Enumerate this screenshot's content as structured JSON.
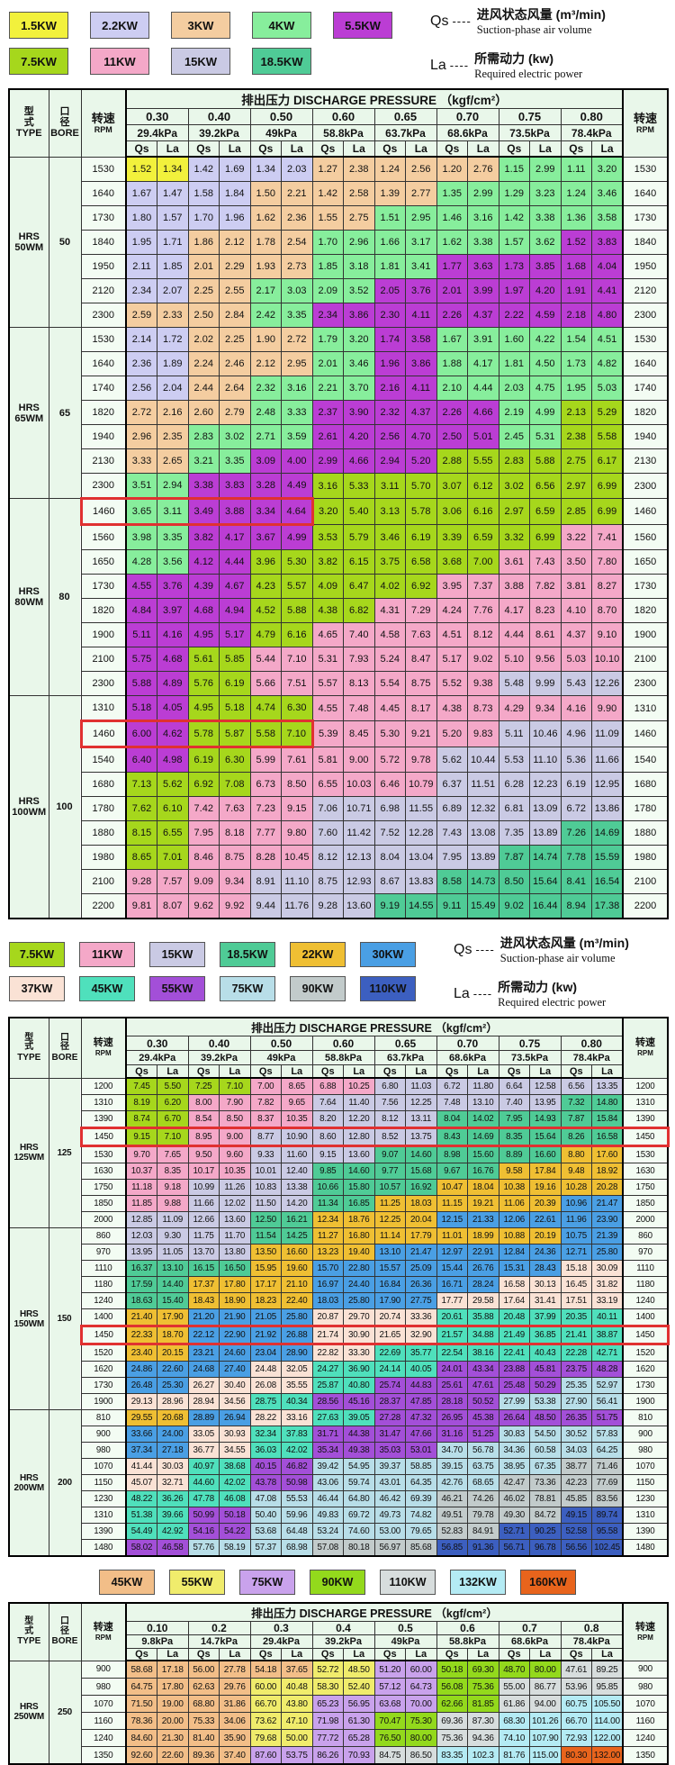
{
  "palette": {
    "a": "#F2F13C",
    "b": "#CDCDF2",
    "c": "#F4CDA0",
    "d": "#87EE9C",
    "e": "#BB3DD4",
    "f": "#A6D71C",
    "g": "#F4A8C8",
    "h": "#CACAE4",
    "i": "#4FCB96",
    "j": "#EFBF33",
    "k": "#4A9FE4",
    "l": "#FAE2D5",
    "m": "#4FE0BC",
    "n": "#A34FD8",
    "o": "#B8DEE8",
    "p": "#C2CBCB",
    "q": "#3C5FC0",
    "r": "#F2BE88",
    "s": "#F0EC6C",
    "t": "#C9A2EC",
    "u": "#93D91C",
    "v": "#D7DDDD",
    "w": "#B4EBF4",
    "x": "#E8641C"
  },
  "defs": {
    "qs": {
      "sym": "Qs",
      "dash": "----",
      "cn": "进风状态风量 (m³/min)",
      "en": "Suction-phase air volume"
    },
    "la": {
      "sym": "La",
      "dash": "----",
      "cn": "所需动力 (kw)",
      "en": "Required electric power"
    }
  },
  "header": {
    "type_cn": [
      "型",
      "式"
    ],
    "type_en": "TYPE",
    "bore_cn": [
      "口",
      "径"
    ],
    "bore_en": "BORE",
    "rpm_cn": "转速",
    "rpm_en": "RPM",
    "pressure_title": "排出压力 DISCHARGE PRESSURE （kgf/cm²）",
    "qs": "Qs",
    "la": "La"
  },
  "legends": [
    {
      "small": false,
      "center": false,
      "notes": [
        "qs",
        "la"
      ],
      "rows": [
        [
          {
            "label": "1.5KW",
            "color": "a"
          },
          {
            "label": "2.2KW",
            "color": "b"
          },
          {
            "label": "3KW",
            "color": "c"
          },
          {
            "label": "4KW",
            "color": "d"
          },
          {
            "label": "5.5KW",
            "color": "e"
          }
        ],
        [
          {
            "label": "7.5KW",
            "color": "f"
          },
          {
            "label": "11KW",
            "color": "g"
          },
          {
            "label": "15KW",
            "color": "h"
          },
          {
            "label": "18.5KW",
            "color": "i"
          }
        ]
      ]
    },
    {
      "small": true,
      "center": false,
      "notes": [
        "qs",
        "la"
      ],
      "rows": [
        [
          {
            "label": "7.5KW",
            "color": "f"
          },
          {
            "label": "11KW",
            "color": "g"
          },
          {
            "label": "15KW",
            "color": "h"
          },
          {
            "label": "18.5KW",
            "color": "i"
          },
          {
            "label": "22KW",
            "color": "j"
          },
          {
            "label": "30KW",
            "color": "k"
          }
        ],
        [
          {
            "label": "37KW",
            "color": "l"
          },
          {
            "label": "45KW",
            "color": "m"
          },
          {
            "label": "55KW",
            "color": "n"
          },
          {
            "label": "75KW",
            "color": "o"
          },
          {
            "label": "90KW",
            "color": "p"
          },
          {
            "label": "110KW",
            "color": "q"
          }
        ]
      ]
    },
    {
      "small": true,
      "center": true,
      "notes": [],
      "rows": [
        [
          {
            "label": "45KW",
            "color": "r"
          },
          {
            "label": "55KW",
            "color": "s"
          },
          {
            "label": "75KW",
            "color": "t"
          },
          {
            "label": "90KW",
            "color": "u"
          },
          {
            "label": "110KW",
            "color": "v"
          },
          {
            "label": "132KW",
            "color": "w"
          },
          {
            "label": "160KW",
            "color": "x"
          }
        ]
      ]
    }
  ],
  "tables": [
    {
      "cls": "t1",
      "pressures": [
        [
          "0.30",
          "29.4kPa"
        ],
        [
          "0.40",
          "39.2kPa"
        ],
        [
          "0.50",
          "49kPa"
        ],
        [
          "0.60",
          "58.8kPa"
        ],
        [
          "0.65",
          "63.7kPa"
        ],
        [
          "0.70",
          "68.6kPa"
        ],
        [
          "0.75",
          "73.5kPa"
        ],
        [
          "0.80",
          "78.4kPa"
        ]
      ],
      "groups": [
        {
          "type": [
            "HRS",
            "50WM"
          ],
          "bore": "50",
          "rows": [
            {
              "r": "1530",
              "v": "1.52 1.34 1.42 1.69 1.34 2.03 1.27 2.38 1.24 2.56 1.20 2.76 1.15 2.99 1.11 3.20",
              "c": "abbcccdd"
            },
            {
              "r": "1640",
              "v": "1.67 1.47 1.58 1.84 1.50 2.21 1.42 2.58 1.39 2.77 1.35 2.99 1.29 3.23 1.24 3.46",
              "c": "bbcccddd"
            },
            {
              "r": "1730",
              "v": "1.80 1.57 1.70 1.96 1.62 2.36 1.55 2.75 1.51 2.95 1.46 3.16 1.42 3.38 1.36 3.58",
              "c": "bbccdddd"
            },
            {
              "r": "1840",
              "v": "1.95 1.71 1.86 2.12 1.78 2.54 1.70 2.96 1.66 3.17 1.62 3.38 1.57 3.62 1.52 3.83",
              "c": "bccdddde"
            },
            {
              "r": "1950",
              "v": "2.11 1.85 2.01 2.29 1.93 2.73 1.85 3.18 1.81 3.41 1.77 3.63 1.73 3.85 1.68 4.04",
              "c": "bccddeee"
            },
            {
              "r": "2120",
              "v": "2.34 2.07 2.25 2.55 2.17 3.03 2.09 3.52 2.05 3.76 2.01 3.99 1.97 4.20 1.91 4.41",
              "c": "bcddeeee"
            },
            {
              "r": "2300",
              "v": "2.59 2.33 2.50 2.84 2.42 3.35 2.34 3.86 2.30 4.11 2.26 4.37 2.22 4.59 2.18 4.80",
              "c": "ccdeeeee"
            }
          ]
        },
        {
          "type": [
            "HRS",
            "65WM"
          ],
          "bore": "65",
          "rows": [
            {
              "r": "1530",
              "v": "2.14 1.72 2.02 2.25 1.90 2.72 1.79 3.20 1.74 3.58 1.67 3.91 1.60 4.22 1.54 4.51",
              "c": "bccdeddd"
            },
            {
              "r": "1640",
              "v": "2.36 1.89 2.24 2.46 2.12 2.95 2.01 3.46 1.96 3.86 1.88 4.17 1.81 4.50 1.73 4.82",
              "c": "bccdeddd"
            },
            {
              "r": "1740",
              "v": "2.56 2.04 2.44 2.64 2.32 3.16 2.21 3.70 2.16 4.11 2.10 4.44 2.03 4.75 1.95 5.03",
              "c": "bcddeddd"
            },
            {
              "r": "1820",
              "v": "2.72 2.16 2.60 2.79 2.48 3.33 2.37 3.90 2.32 4.37 2.26 4.66 2.19 4.99 2.13 5.29",
              "c": "ccdeeedf"
            },
            {
              "r": "1940",
              "v": "2.96 2.35 2.83 3.02 2.71 3.59 2.61 4.20 2.56 4.70 2.50 5.01 2.45 5.31 2.38 5.58",
              "c": "cddeeedf"
            },
            {
              "r": "2130",
              "v": "3.33 2.65 3.21 3.35 3.09 4.00 2.99 4.66 2.94 5.20 2.88 5.55 2.83 5.88 2.75 6.17",
              "c": "cdeeefff"
            },
            {
              "r": "2300",
              "v": "3.51 2.94 3.38 3.83 3.28 4.49 3.16 5.33 3.11 5.70 3.07 6.12 3.02 6.56 2.97 6.99",
              "c": "deefffff"
            }
          ]
        },
        {
          "type": [
            "HRS",
            "80WM"
          ],
          "bore": "80",
          "rows": [
            {
              "r": "1460",
              "v": "3.65 3.11 3.49 3.88 3.34 4.64 3.20 5.40 3.13 5.78 3.06 6.16 2.97 6.59 2.85 6.99",
              "c": "deefffff",
              "h": 3
            },
            {
              "r": "1560",
              "v": "3.98 3.35 3.82 4.17 3.67 4.99 3.53 5.79 3.46 6.19 3.39 6.59 3.32 6.99 3.22 7.41",
              "c": "deeffffg"
            },
            {
              "r": "1650",
              "v": "4.28 3.56 4.12 4.44 3.96 5.30 3.82 6.15 3.75 6.58 3.68 7.00 3.61 7.43 3.50 7.80",
              "c": "deffffgg"
            },
            {
              "r": "1730",
              "v": "4.55 3.76 4.39 4.67 4.23 5.57 4.09 6.47 4.02 6.92 3.95 7.37 3.88 7.82 3.81 8.27",
              "c": "eefffggg"
            },
            {
              "r": "1820",
              "v": "4.84 3.97 4.68 4.94 4.52 5.88 4.38 6.82 4.31 7.29 4.24 7.76 4.17 8.23 4.10 8.70",
              "c": "eeffgggg"
            },
            {
              "r": "1900",
              "v": "5.11 4.16 4.95 5.17 4.79 6.16 4.65 7.40 4.58 7.63 4.51 8.12 4.44 8.61 4.37 9.10",
              "c": "eefggggg"
            },
            {
              "r": "2100",
              "v": "5.75 4.68 5.61 5.85 5.44 7.10 5.31 7.93 5.24 8.47 5.17 9.02 5.10 9.56 5.03 10.10",
              "c": "efgggggg"
            },
            {
              "r": "2300",
              "v": "5.88 4.89 5.76 6.19 5.66 7.51 5.57 8.13 5.54 8.75 5.52 9.38 5.48 9.99 5.43 12.26",
              "c": "efgggghh"
            }
          ]
        },
        {
          "type": [
            "HRS",
            "100WM"
          ],
          "bore": "100",
          "rows": [
            {
              "r": "1310",
              "v": "5.18 4.05 4.95 5.18 4.74 6.30 4.55 7.48 4.45 8.17 4.38 8.73 4.29 9.34 4.16 9.90",
              "c": "effggggg"
            },
            {
              "r": "1460",
              "v": "6.00 4.62 5.78 5.87 5.58 7.10 5.39 8.45 5.30 9.21 5.20 9.83 5.11 10.46 4.96 11.09",
              "c": "effggghh",
              "h": 3
            },
            {
              "r": "1540",
              "v": "6.40 4.98 6.19 6.30 5.99 7.61 5.81 9.00 5.72 9.78 5.62 10.44 5.53 11.10 5.36 11.66",
              "c": "efggghhh"
            },
            {
              "r": "1680",
              "v": "7.13 5.62 6.92 7.08 6.73 8.50 6.55 10.03 6.46 10.79 6.37 11.51 6.28 12.23 6.19 12.95",
              "c": "ffggghhh"
            },
            {
              "r": "1780",
              "v": "7.62 6.10 7.42 7.63 7.23 9.15 7.06 10.71 6.98 11.55 6.89 12.32 6.81 13.09 6.72 13.86",
              "c": "fgghhhhh"
            },
            {
              "r": "1880",
              "v": "8.15 6.55 7.95 8.18 7.77 9.80 7.60 11.42 7.52 12.28 7.43 13.08 7.35 13.89 7.26 14.69",
              "c": "fgghhhhi"
            },
            {
              "r": "1980",
              "v": "8.65 7.01 8.46 8.75 8.28 10.45 8.12 12.13 8.04 13.04 7.95 13.89 7.87 14.74 7.78 15.59",
              "c": "fgghhhii"
            },
            {
              "r": "2100",
              "v": "9.28 7.57 9.09 9.34 8.91 11.10 8.75 12.93 8.67 13.83 8.58 14.73 8.50 15.64 8.41 16.54",
              "c": "gghhhiii"
            },
            {
              "r": "2200",
              "v": "9.81 8.07 9.62 9.92 9.44 11.76 9.28 13.60 9.19 14.55 9.11 15.49 9.02 16.44 8.94 17.38",
              "c": "gghhiiii"
            }
          ]
        }
      ]
    },
    {
      "cls": "t2",
      "pressures": [
        [
          "0.30",
          "29.4kPa"
        ],
        [
          "0.40",
          "39.2kPa"
        ],
        [
          "0.50",
          "49kPa"
        ],
        [
          "0.60",
          "58.8kPa"
        ],
        [
          "0.65",
          "63.7kPa"
        ],
        [
          "0.70",
          "68.6kPa"
        ],
        [
          "0.75",
          "73.5kPa"
        ],
        [
          "0.80",
          "78.4kPa"
        ]
      ],
      "groups": [
        {
          "type": [
            "HRS",
            "125WM"
          ],
          "bore": "125",
          "rows": [
            {
              "r": "1200",
              "v": "7.45 5.50 7.25 7.10 7.00 8.65 6.88 10.25 6.80 11.03 6.72 11.80 6.64 12.58 6.56 13.35",
              "c": "ffgghhhh"
            },
            {
              "r": "1310",
              "v": "8.19 6.20 8.00 7.90 7.82 9.65 7.64 11.40 7.56 12.25 7.48 13.10 7.40 13.95 7.32 14.80",
              "c": "fgghhhhi"
            },
            {
              "r": "1390",
              "v": "8.74 6.70 8.54 8.50 8.37 10.35 8.20 12.20 8.12 13.11 8.04 14.02 7.95 14.93 7.87 15.84",
              "c": "fgghhiii"
            },
            {
              "r": "1450",
              "v": "9.15 7.10 8.95 9.00 8.77 10.90 8.60 12.80 8.52 13.75 8.43 14.69 8.35 15.64 8.26 16.58",
              "c": "fghhhiii",
              "h": "f"
            },
            {
              "r": "1530",
              "v": "9.70 7.65 9.50 9.60 9.33 11.60 9.15 13.60 9.07 14.60 8.98 15.60 8.89 16.60 8.80 17.60",
              "c": "gghhiiij"
            },
            {
              "r": "1630",
              "v": "10.37 8.35 10.17 10.35 10.01 12.40 9.85 14.60 9.77 15.68 9.67 16.76 9.58 17.84 9.48 18.92",
              "c": "gghiiijj"
            },
            {
              "r": "1750",
              "v": "11.18 9.18 10.99 11.26 10.83 13.38 10.66 15.80 10.57 16.92 10.47 18.04 10.38 19.16 10.28 20.28",
              "c": "ghhiijjj"
            },
            {
              "r": "1850",
              "v": "11.85 9.88 11.66 12.02 11.50 14.20 11.34 16.85 11.25 18.03 11.15 19.21 11.06 20.39 10.96 21.47",
              "c": "ghhijjjk"
            },
            {
              "r": "2000",
              "v": "12.85 11.09 12.66 13.60 12.50 16.21 12.34 18.76 12.25 20.04 12.15 21.33 12.06 22.61 11.96 23.90",
              "c": "hhijjkkk"
            }
          ]
        },
        {
          "type": [
            "HRS",
            "150WM"
          ],
          "bore": "150",
          "rows": [
            {
              "r": "860",
              "v": "12.03 9.30 11.75 11.70 11.54 14.25 11.27 16.80 11.14 17.79 11.01 18.99 10.88 20.19 10.75 21.39",
              "c": "hhijjjjk"
            },
            {
              "r": "970",
              "v": "13.95 11.05 13.70 13.80 13.50 16.60 13.23 19.40 13.10 21.47 12.97 22.91 12.84 24.36 12.71 25.80",
              "c": "hhjjkkkk"
            },
            {
              "r": "1110",
              "v": "16.37 13.10 16.15 16.50 15.95 19.60 15.70 22.80 15.57 25.09 15.44 26.76 15.31 28.43 15.18 30.09",
              "c": "iijkkkkl"
            },
            {
              "r": "1180",
              "v": "17.59 14.40 17.37 17.80 17.17 21.10 16.97 24.40 16.84 26.36 16.71 28.24 16.58 30.13 16.45 31.82",
              "c": "ijjkkkll"
            },
            {
              "r": "1240",
              "v": "18.63 15.40 18.43 18.90 18.23 22.40 18.03 25.80 17.90 27.75 17.77 29.58 17.64 31.41 17.51 33.19",
              "c": "ijjkklll"
            },
            {
              "r": "1400",
              "v": "21.40 17.90 21.20 21.90 21.05 25.80 20.87 29.70 20.74 33.36 20.61 35.88 20.48 37.99 20.35 40.11",
              "c": "jkkllmmm"
            },
            {
              "r": "1450",
              "v": "22.33 18.70 22.12 22.90 21.92 26.88 21.74 30.90 21.65 32.90 21.57 34.88 21.49 36.85 21.41 38.87",
              "c": "jkkllmmm",
              "h": "f"
            },
            {
              "r": "1520",
              "v": "23.40 20.15 23.21 24.60 23.04 28.90 22.82 33.30 22.69 35.77 22.54 38.16 22.41 40.43 22.28 42.71",
              "c": "jkklmmmm"
            },
            {
              "r": "1620",
              "v": "24.86 22.60 24.68 27.40 24.48 32.05 24.27 36.90 24.14 40.05 24.01 43.34 23.88 45.81 23.75 48.28",
              "c": "kklmmnnn"
            },
            {
              "r": "1730",
              "v": "26.48 25.30 26.27 30.40 26.08 35.55 25.87 40.80 25.74 44.83 25.61 47.61 25.48 50.29 25.35 52.97",
              "c": "kllmnnno"
            },
            {
              "r": "1900",
              "v": "29.13 28.96 28.94 34.56 28.75 40.34 28.56 45.16 28.37 47.85 28.18 50.52 27.99 53.38 27.90 56.41",
              "c": "llmnnnoo"
            }
          ]
        },
        {
          "type": [
            "HRS",
            "200WM"
          ],
          "bore": "200",
          "rows": [
            {
              "r": "810",
              "v": "29.55 20.68 28.89 26.94 28.22 33.16 27.63 39.05 27.28 47.32 26.95 45.38 26.64 48.50 26.35 51.75",
              "c": "jklmnnnn"
            },
            {
              "r": "900",
              "v": "33.66 24.00 33.05 30.93 32.34 37.83 31.71 44.38 31.47 47.66 31.16 51.25 30.83 54.50 30.52 57.83",
              "c": "klmnnnoo"
            },
            {
              "r": "980",
              "v": "37.34 27.18 36.77 34.55 36.03 42.02 35.34 49.38 35.03 53.01 34.70 56.78 34.36 60.58 34.03 64.25",
              "c": "klmnnooo"
            },
            {
              "r": "1070",
              "v": "41.44 30.03 40.97 38.68 40.15 46.82 39.42 54.95 39.37 58.85 39.15 63.75 38.95 67.35 38.77 71.46",
              "c": "lmnoooop"
            },
            {
              "r": "1150",
              "v": "45.07 32.71 44.60 42.02 43.78 50.98 43.06 59.74 43.01 64.35 42.76 68.65 42.47 73.36 42.23 77.69",
              "c": "lmnooopp"
            },
            {
              "r": "1230",
              "v": "48.22 36.26 47.78 46.08 47.08 55.53 46.44 64.80 46.42 69.39 46.21 74.26 46.02 78.81 45.85 83.56",
              "c": "mmoooppp"
            },
            {
              "r": "1310",
              "v": "51.38 39.66 50.99 50.18 50.40 59.96 49.83 69.72 49.73 74.82 49.51 79.78 49.30 84.72 49.15 89.74",
              "c": "mnoooppq"
            },
            {
              "r": "1390",
              "v": "54.49 42.92 54.16 54.22 53.68 64.48 53.24 74.60 53.00 79.65 52.83 84.91 52.71 90.25 52.58 95.58",
              "c": "mnooopqq"
            },
            {
              "r": "1480",
              "v": "58.02 46.58 57.76 58.19 57.37 68.98 57.08 80.18 56.97 85.68 56.85 91.36 56.71 96.78 56.56 102.45",
              "c": "nooppqqq"
            }
          ]
        }
      ]
    },
    {
      "cls": "t3",
      "pressures": [
        [
          "0.10",
          "9.8kPa"
        ],
        [
          "0.2",
          "14.7kPa"
        ],
        [
          "0.3",
          "29.4kPa"
        ],
        [
          "0.4",
          "39.2kPa"
        ],
        [
          "0.5",
          "49kPa"
        ],
        [
          "0.6",
          "58.8kPa"
        ],
        [
          "0.7",
          "68.6kPa"
        ],
        [
          "0.8",
          "78.4kPa"
        ]
      ],
      "groups": [
        {
          "type": [
            "HRS",
            "250WM"
          ],
          "bore": "250",
          "rows": [
            {
              "r": "900",
              "v": "58.68 17.18 56.00 27.78 54.18 37.65 52.72 48.50 51.20 60.00 50.18 69.30 48.70 80.00 47.61 89.25",
              "c": "rrrstuuv"
            },
            {
              "r": "980",
              "v": "64.75 17.80 62.63 29.76 60.00 40.48 58.30 52.40 57.12 64.73 56.08 75.36 55.00 86.77 53.96 95.85",
              "c": "rrsstuvv"
            },
            {
              "r": "1070",
              "v": "71.50 19.00 68.80 31.86 66.70 43.80 65.23 56.95 63.68 70.00 62.66 81.85 61.86 94.00 60.75 105.50",
              "c": "rrsttuvw"
            },
            {
              "r": "1160",
              "v": "78.36 20.00 75.33 34.06 73.62 47.10 71.98 61.30 70.47 75.30 69.36 87.30 68.30 101.26 66.70 114.00",
              "c": "rrstuvww"
            },
            {
              "r": "1240",
              "v": "84.60 21.30 81.40 35.90 79.68 50.00 77.72 65.28 76.50 80.00 75.36 94.36 74.10 107.90 72.93 122.00",
              "c": "rrstuvww"
            },
            {
              "r": "1350",
              "v": "92.60 22.60 89.36 37.40 87.60 53.75 86.26 70.93 84.75 86.50 83.35 102.3 81.76 115.00 80.30 132.00",
              "c": "rrttvwwx"
            }
          ]
        }
      ]
    }
  ]
}
